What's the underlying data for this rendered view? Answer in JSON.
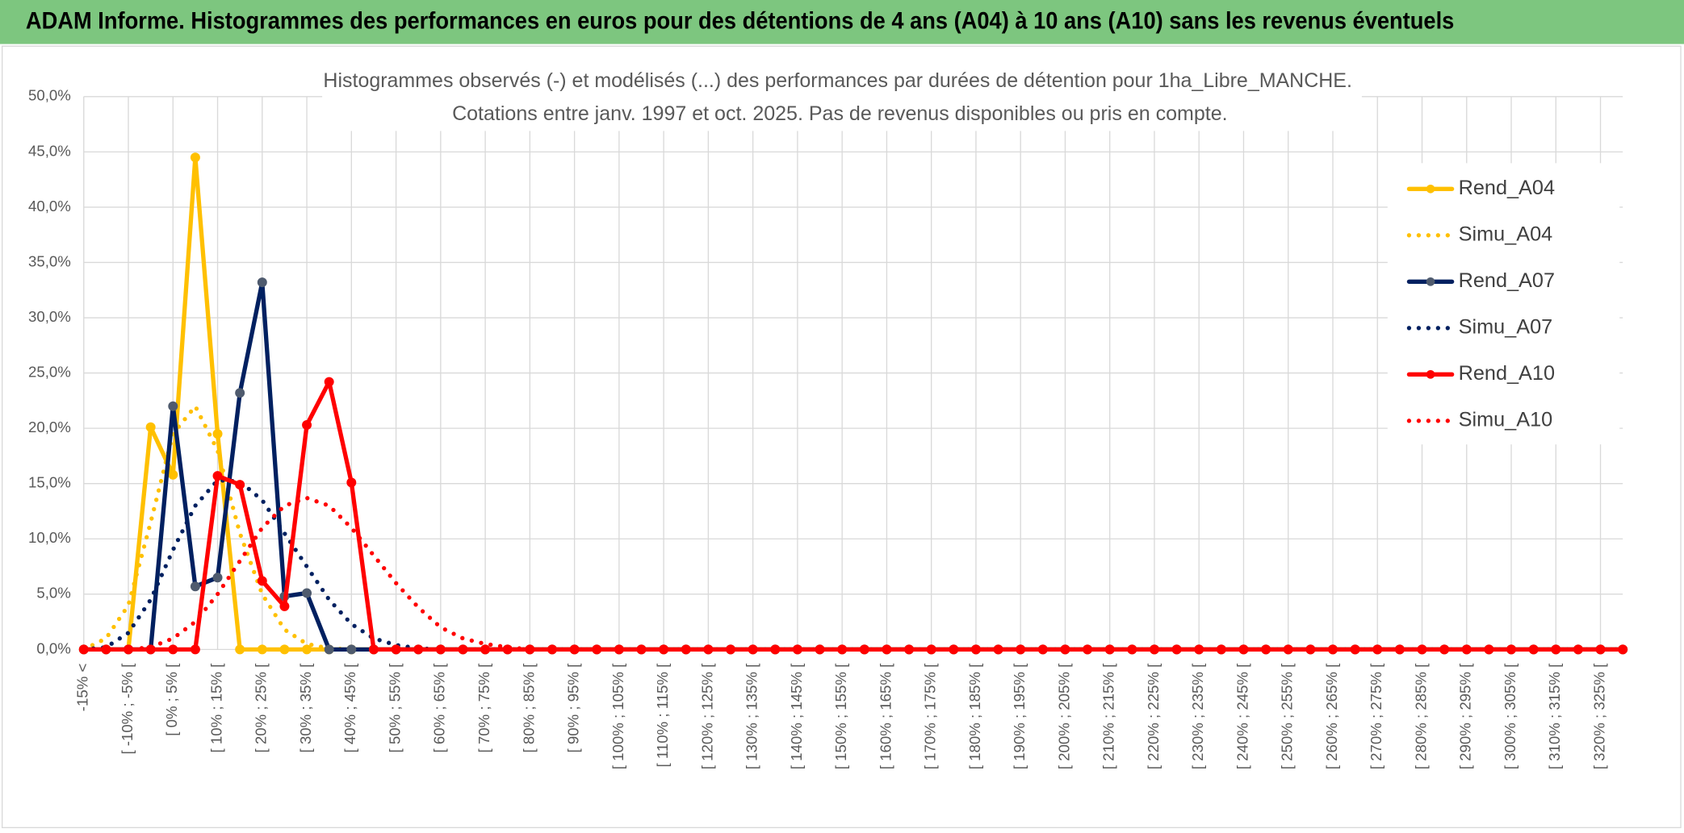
{
  "header": {
    "title": "ADAM Informe. Histogrammes des performances en euros pour des détentions de 4 ans (A04) à 10 ans (A10) sans les revenus éventuels"
  },
  "chart_data": {
    "type": "line",
    "title": "Histogrammes observés (-) et modélisés (...) des performances par durées de détention pour 1ha_Libre_MANCHE.",
    "subtitle": "Cotations entre janv. 1997 et oct. 2025. Pas de revenus disponibles ou pris en compte.",
    "categories": [
      "-15% <",
      null,
      "[ -10% ; -5% [",
      null,
      "[ 0% ; 5% [",
      null,
      "[ 10% ; 15% [",
      null,
      "[ 20% ; 25% [",
      null,
      "[ 30% ; 35% [",
      null,
      "[ 40% ; 45% [",
      null,
      "[ 50% ; 55% [",
      null,
      "[ 60% ; 65% [",
      null,
      "[ 70% ; 75% [",
      null,
      "[ 80% ; 85% [",
      null,
      "[ 90% ; 95% [",
      null,
      "[ 100% ; 105% [",
      null,
      "[ 110% ; 115% [",
      null,
      "[ 120% ; 125% [",
      null,
      "[ 130% ; 135% [",
      null,
      "[ 140% ; 145% [",
      null,
      "[ 150% ; 155% [",
      null,
      "[ 160% ; 165% [",
      null,
      "[ 170% ; 175% [",
      null,
      "[ 180% ; 185% [",
      null,
      "[ 190% ; 195% [",
      null,
      "[ 200% ; 205% [",
      null,
      "[ 210% ; 215% [",
      null,
      "[ 220% ; 225% [",
      null,
      "[ 230% ; 235% [",
      null,
      "[ 240% ; 245% [",
      null,
      "[ 250% ; 255% [",
      null,
      "[ 260% ; 265% [",
      null,
      "[ 270% ; 275% [",
      null,
      "[ 280% ; 285% [",
      null,
      "[ 290% ; 295% [",
      null,
      "[ 300% ; 305% [",
      null,
      "[ 310% ; 315% [",
      null,
      "[ 320% ; 325% [",
      null
    ],
    "series": [
      {
        "name": "Rend_A04",
        "color": "#ffc000",
        "line_style": "solid",
        "marker": true,
        "marker_color": "#ffc000",
        "values": [
          0,
          0,
          0,
          20.1,
          15.8,
          44.5,
          19.5,
          0,
          0,
          0,
          0,
          0,
          0,
          0,
          0,
          0,
          0,
          0,
          0,
          0,
          0,
          0,
          0,
          0,
          0,
          0,
          0,
          0,
          0,
          0,
          0,
          0,
          0,
          0,
          0,
          0,
          0,
          0,
          0,
          0,
          0,
          0,
          0,
          0,
          0,
          0,
          0,
          0,
          0,
          0,
          0,
          0,
          0,
          0,
          0,
          0,
          0,
          0,
          0,
          0,
          0,
          0,
          0,
          0,
          0,
          0,
          0,
          0,
          0,
          0
        ]
      },
      {
        "name": "Simu_A04",
        "color": "#ffc000",
        "line_style": "dotted",
        "marker": false,
        "values": [
          0,
          1,
          4,
          11.5,
          19.5,
          22,
          18,
          10.5,
          5,
          1.8,
          0.5,
          0.1,
          0,
          0,
          0,
          0,
          0,
          0,
          0,
          0,
          0,
          0,
          0,
          0,
          0,
          0,
          0,
          0,
          0,
          0,
          0,
          0,
          0,
          0,
          0,
          0,
          0,
          0,
          0,
          0,
          0,
          0,
          0,
          0,
          0,
          0,
          0,
          0,
          0,
          0,
          0,
          0,
          0,
          0,
          0,
          0,
          0,
          0,
          0,
          0,
          0,
          0,
          0,
          0,
          0,
          0,
          0,
          0,
          0,
          0
        ]
      },
      {
        "name": "Rend_A07",
        "color": "#002060",
        "line_style": "solid",
        "marker": true,
        "marker_color": "#4f5b6e",
        "values": [
          0,
          0,
          0,
          0,
          22,
          5.7,
          6.5,
          23.2,
          33.2,
          4.8,
          5.1,
          0,
          0,
          0,
          0,
          0,
          0,
          0,
          0,
          0,
          0,
          0,
          0,
          0,
          0,
          0,
          0,
          0,
          0,
          0,
          0,
          0,
          0,
          0,
          0,
          0,
          0,
          0,
          0,
          0,
          0,
          0,
          0,
          0,
          0,
          0,
          0,
          0,
          0,
          0,
          0,
          0,
          0,
          0,
          0,
          0,
          0,
          0,
          0,
          0,
          0,
          0,
          0,
          0,
          0,
          0,
          0,
          0,
          0,
          0
        ]
      },
      {
        "name": "Simu_A07",
        "color": "#002060",
        "line_style": "dotted",
        "marker": false,
        "values": [
          0,
          0.2,
          1.5,
          4.5,
          9,
          13,
          15.3,
          15.2,
          13.5,
          10.5,
          7.5,
          4.5,
          2.3,
          1,
          0.4,
          0.1,
          0,
          0,
          0,
          0,
          0,
          0,
          0,
          0,
          0,
          0,
          0,
          0,
          0,
          0,
          0,
          0,
          0,
          0,
          0,
          0,
          0,
          0,
          0,
          0,
          0,
          0,
          0,
          0,
          0,
          0,
          0,
          0,
          0,
          0,
          0,
          0,
          0,
          0,
          0,
          0,
          0,
          0,
          0,
          0,
          0,
          0,
          0,
          0,
          0,
          0,
          0,
          0,
          0,
          0
        ]
      },
      {
        "name": "Rend_A10",
        "color": "#ff0000",
        "line_style": "solid",
        "marker": true,
        "marker_color": "#ff0000",
        "values": [
          0,
          0,
          0,
          0,
          0,
          0,
          15.7,
          14.9,
          6.2,
          3.9,
          20.3,
          24.2,
          15.1,
          0,
          0,
          0,
          0,
          0,
          0,
          0,
          0,
          0,
          0,
          0,
          0,
          0,
          0,
          0,
          0,
          0,
          0,
          0,
          0,
          0,
          0,
          0,
          0,
          0,
          0,
          0,
          0,
          0,
          0,
          0,
          0,
          0,
          0,
          0,
          0,
          0,
          0,
          0,
          0,
          0,
          0,
          0,
          0,
          0,
          0,
          0,
          0,
          0,
          0,
          0,
          0,
          0,
          0,
          0,
          0,
          0
        ]
      },
      {
        "name": "Simu_A10",
        "color": "#ff0000",
        "line_style": "dotted",
        "marker": false,
        "values": [
          0,
          0,
          0,
          0.2,
          1,
          2.5,
          5,
          8,
          11,
          13,
          13.7,
          13,
          11,
          8.5,
          6,
          3.8,
          2,
          1,
          0.5,
          0.2,
          0,
          0,
          0,
          0,
          0,
          0,
          0,
          0,
          0,
          0,
          0,
          0,
          0,
          0,
          0,
          0,
          0,
          0,
          0,
          0,
          0,
          0,
          0,
          0,
          0,
          0,
          0,
          0,
          0,
          0,
          0,
          0,
          0,
          0,
          0,
          0,
          0,
          0,
          0,
          0,
          0,
          0,
          0,
          0,
          0,
          0,
          0,
          0,
          0,
          0
        ]
      }
    ],
    "ylim": [
      0,
      50
    ],
    "yticks": [
      {
        "value": 0,
        "label": "0,0%"
      },
      {
        "value": 5,
        "label": "5,0%"
      },
      {
        "value": 10,
        "label": "10,0%"
      },
      {
        "value": 15,
        "label": "15,0%"
      },
      {
        "value": 20,
        "label": "20,0%"
      },
      {
        "value": 25,
        "label": "25,0%"
      },
      {
        "value": 30,
        "label": "30,0%"
      },
      {
        "value": 35,
        "label": "35,0%"
      },
      {
        "value": 40,
        "label": "40,0%"
      },
      {
        "value": 45,
        "label": "45,0%"
      },
      {
        "value": 50,
        "label": "50,0%"
      }
    ],
    "grid": true,
    "legend": "right"
  }
}
